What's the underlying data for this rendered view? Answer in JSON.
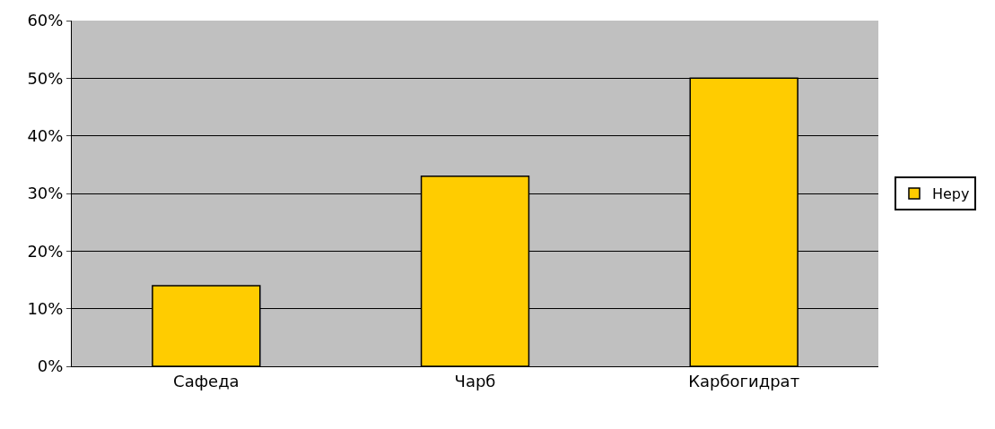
{
  "chart_data": {
    "type": "bar",
    "categories": [
      "Сафеда",
      "Чарб",
      "Карбогидрат"
    ],
    "series": [
      {
        "name": "Неру",
        "color": "#ffcc00",
        "values": [
          14,
          33,
          50
        ]
      }
    ],
    "ylim": [
      0,
      60
    ],
    "yticks": [
      {
        "value": 0,
        "label": "0%"
      },
      {
        "value": 10,
        "label": "10%"
      },
      {
        "value": 20,
        "label": "20%"
      },
      {
        "value": 30,
        "label": "30%"
      },
      {
        "value": 40,
        "label": "40%"
      },
      {
        "value": 50,
        "label": "50%"
      },
      {
        "value": 60,
        "label": "60%"
      }
    ],
    "grid": "y",
    "legend": "right"
  }
}
